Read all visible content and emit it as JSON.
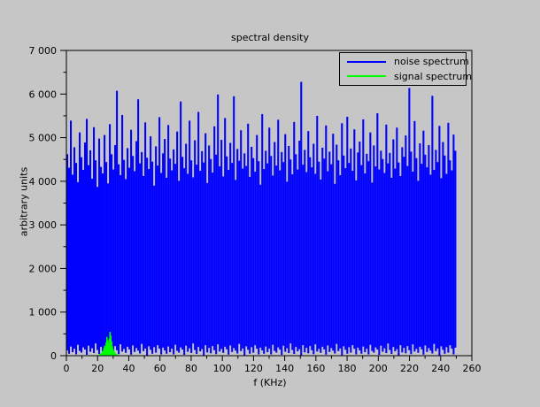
{
  "window": {
    "background": "#c6c6c6"
  },
  "chart_data": {
    "type": "line",
    "title": "spectral density",
    "xlabel": "f (KHz)",
    "ylabel": "arbitrary units",
    "xlim": [
      0,
      260
    ],
    "ylim": [
      0,
      7000
    ],
    "grid": false,
    "legend_position": "top-right-inside",
    "colors": {
      "noise": "#0000ff",
      "signal": "#00ff00",
      "axis": "#000000",
      "background": "#c6c6c6"
    },
    "xticks": [
      {
        "v": 0,
        "label": "0"
      },
      {
        "v": 20,
        "label": "20"
      },
      {
        "v": 40,
        "label": "40"
      },
      {
        "v": 60,
        "label": "60"
      },
      {
        "v": 80,
        "label": "80"
      },
      {
        "v": 100,
        "label": "100"
      },
      {
        "v": 120,
        "label": "120"
      },
      {
        "v": 140,
        "label": "140"
      },
      {
        "v": 160,
        "label": "160"
      },
      {
        "v": 180,
        "label": "180"
      },
      {
        "v": 200,
        "label": "200"
      },
      {
        "v": 220,
        "label": "220"
      },
      {
        "v": 240,
        "label": "240"
      },
      {
        "v": 260,
        "label": "260"
      }
    ],
    "xtick_minor_step": 10,
    "yticks": [
      {
        "v": 0,
        "label": "0"
      },
      {
        "v": 1000,
        "label": "1 000"
      },
      {
        "v": 2000,
        "label": "2 000"
      },
      {
        "v": 3000,
        "label": "3 000"
      },
      {
        "v": 4000,
        "label": "4 000"
      },
      {
        "v": 5000,
        "label": "5 000"
      },
      {
        "v": 6000,
        "label": "6 000"
      },
      {
        "v": 7000,
        "label": "7 000"
      }
    ],
    "ytick_minor_step": 500,
    "legend": [
      {
        "label": "noise spectrum",
        "color": "#0000ff"
      },
      {
        "label": "signal spectrum",
        "color": "#00ff00"
      }
    ],
    "series_noise": {
      "name": "noise spectrum",
      "x_start": 0,
      "x_end": 250,
      "tops": [
        4620,
        4310,
        5390,
        4150,
        4780,
        4420,
        3980,
        5120,
        4550,
        4260,
        4890,
        5430,
        4370,
        4710,
        4060,
        5240,
        4480,
        3870,
        4980,
        4330,
        4180,
        5060,
        4440,
        3950,
        5310,
        4620,
        4270,
        4830,
        6075,
        4390,
        4140,
        5520,
        4490,
        4050,
        4760,
        4310,
        5180,
        4580,
        4230,
        4920,
        5880,
        4410,
        4670,
        4120,
        5350,
        4540,
        4280,
        5030,
        4450,
        3900,
        4800,
        4360,
        5470,
        4190,
        4640,
        4970,
        4080,
        5290,
        4520,
        4250,
        4730,
        4400,
        5140,
        4010,
        5830,
        4560,
        4300,
        4860,
        4170,
        5390,
        4480,
        4090,
        4940,
        4380,
        5590,
        4240,
        4690,
        4430,
        5100,
        3960,
        4820,
        4510,
        4200,
        5260,
        4610,
        5990,
        4340,
        4950,
        4110,
        5450,
        4570,
        4260,
        4880,
        4420,
        5950,
        4030,
        4740,
        4470,
        5170,
        4290,
        4640,
        4350,
        5320,
        4100,
        4790,
        4530,
        4220,
        5060,
        4460,
        3920,
        5540,
        4280,
        4700,
        4410,
        5230,
        4580,
        4130,
        4900,
        4360,
        5410,
        4250,
        4670,
        4440,
        5080,
        3990,
        4810,
        4500,
        4160,
        5360,
        4620,
        4270,
        4930,
        6280,
        4380,
        4720,
        4210,
        5150,
        4550,
        4320,
        4860,
        4170,
        5500,
        4450,
        4040,
        4770,
        4520,
        5280,
        4230,
        4680,
        4390,
        5090,
        3940,
        4840,
        4480,
        4140,
        5330,
        4590,
        4300,
        5480,
        4420,
        4750,
        4240,
        5190,
        4020,
        4660,
        4910,
        4370,
        5420,
        4180,
        4630,
        4460,
        5120,
        3970,
        4820,
        4340,
        5560,
        4270,
        4700,
        4510,
        4190,
        5300,
        4410,
        4650,
        4080,
        4960,
        4290,
        5230,
        4430,
        4120,
        4780,
        4560,
        5050,
        4350,
        6140,
        4680,
        4220,
        5380,
        4530,
        4010,
        4870,
        4400,
        5160,
        4610,
        4320,
        4830,
        4150,
        5960,
        4260,
        4720,
        4440,
        5270,
        4070,
        4900,
        4590,
        4170,
        5340,
        4480,
        4250,
        5070,
        4700
      ],
      "bottoms_cycle": [
        120,
        45,
        210,
        80,
        160,
        30,
        250,
        110,
        70,
        190,
        140,
        20,
        230,
        90,
        170,
        60,
        280,
        130,
        40,
        200,
        100,
        150,
        10,
        240,
        75,
        180,
        55,
        220,
        125,
        35,
        260,
        95,
        155,
        65,
        205,
        145,
        25,
        235,
        85,
        175,
        115,
        50,
        270,
        105,
        165,
        0,
        215,
        135,
        45,
        195,
        70,
        240,
        160,
        30,
        185
      ]
    },
    "series_signal": {
      "name": "signal spectrum",
      "x_start": 21,
      "x_step": 0.5,
      "values": [
        25,
        30,
        45,
        60,
        80,
        110,
        170,
        230,
        210,
        300,
        430,
        350,
        280,
        390,
        545,
        460,
        330,
        220,
        150,
        100,
        70,
        50,
        35,
        25,
        15,
        10,
        8
      ]
    }
  }
}
